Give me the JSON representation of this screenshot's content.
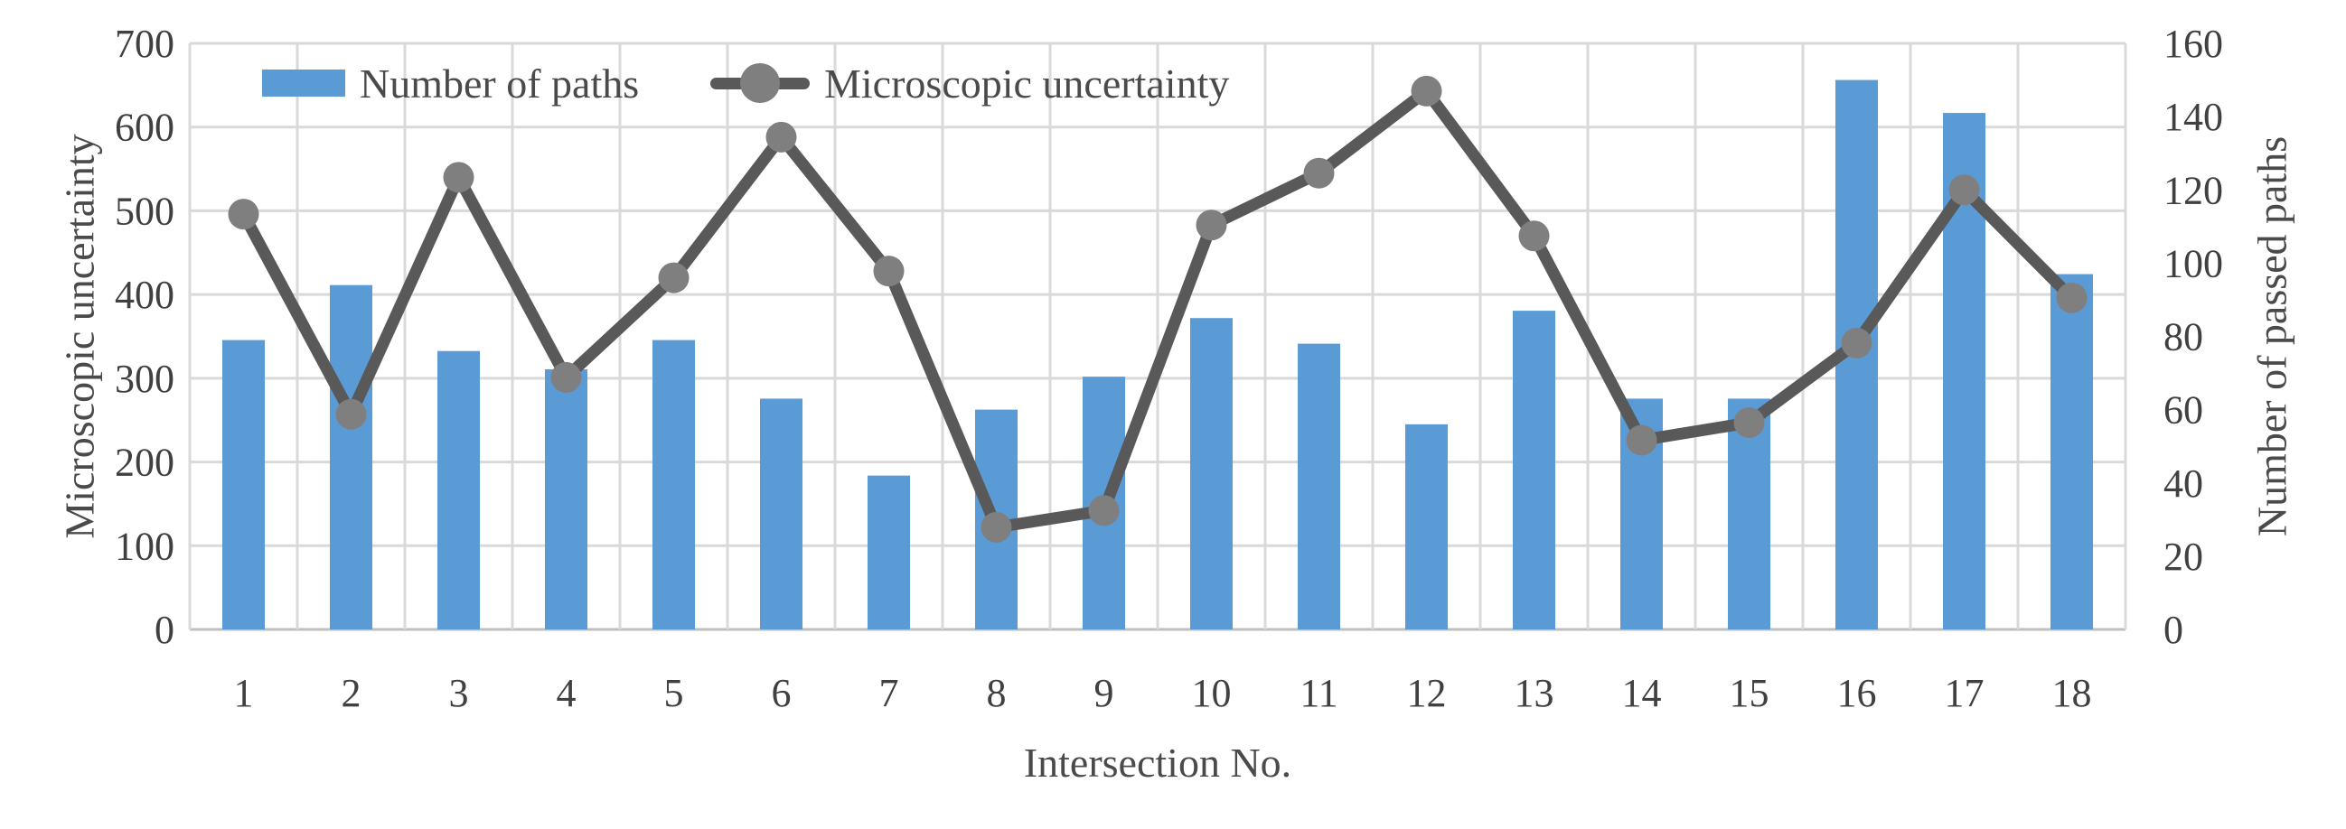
{
  "chart_data": {
    "type": "bar",
    "subtype": "combo-bar-line",
    "title": "",
    "xlabel": "Intersection No.",
    "categories": [
      "1",
      "2",
      "3",
      "4",
      "5",
      "6",
      "7",
      "8",
      "9",
      "10",
      "11",
      "12",
      "13",
      "14",
      "15",
      "16",
      "17",
      "18"
    ],
    "series": [
      {
        "name": "Number of paths",
        "type": "bar",
        "axis": "right",
        "color": "#5B9BD5",
        "values": [
          79,
          94,
          76,
          71,
          79,
          63,
          42,
          60,
          69,
          85,
          78,
          56,
          87,
          63,
          63,
          150,
          141,
          97
        ]
      },
      {
        "name": "Microscopic uncertainty",
        "type": "line",
        "axis": "left",
        "color": "#595959",
        "marker_color": "#7F7F7F",
        "values": [
          496,
          257,
          540,
          301,
          420,
          588,
          428,
          122,
          142,
          483,
          545,
          643,
          470,
          226,
          247,
          342,
          525,
          396
        ]
      }
    ],
    "left_axis": {
      "label": "Microscopic uncertainty",
      "min": 0,
      "max": 700,
      "step": 100,
      "ticks": [
        0,
        100,
        200,
        300,
        400,
        500,
        600,
        700
      ]
    },
    "right_axis": {
      "label": "Number of passed paths",
      "min": 0,
      "max": 160,
      "step": 20,
      "ticks": [
        0,
        20,
        40,
        60,
        80,
        100,
        120,
        140,
        160
      ]
    },
    "grid": true,
    "legend_position": "top",
    "colors": {
      "grid": "#D9D9D9",
      "axis_line": "#BFBFBF",
      "text": "#404040"
    }
  },
  "legend": {
    "bar_label": "Number of paths",
    "line_label": "Microscopic uncertainty"
  }
}
